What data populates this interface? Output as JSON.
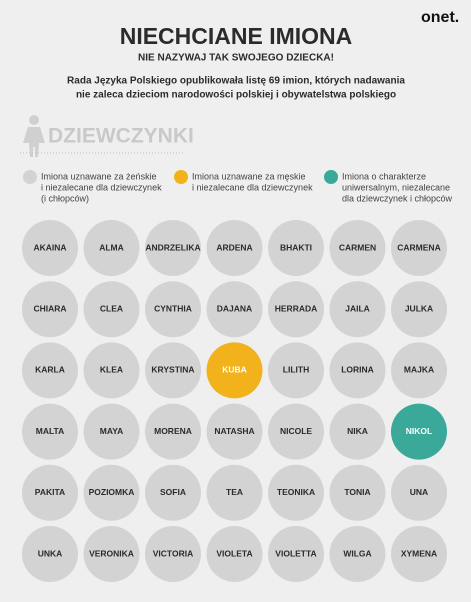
{
  "logo": "onet.",
  "title": "NIECHCIANE IMIONA",
  "subtitle": "NIE NAZYWAJ TAK SWOJEGO DZIECKA!",
  "description": [
    "Rada Języka Polskiego opublikowała listę 69 imion, których nadawania",
    "nie zaleca dzieciom narodowości polskiej i obywatelstwa polskiego"
  ],
  "section": "DZIEWCZYNKI",
  "legend": [
    {
      "color": "#d3d3d3",
      "lines": [
        "Imiona uznawane za żeńskie",
        "i niezalecane dla dziewczynek",
        "(i chłopców)"
      ]
    },
    {
      "color": "#f2b21b",
      "lines": [
        "Imiona uznawane za męskie",
        "i niezalecane dla dziewczynek"
      ]
    },
    {
      "color": "#3aa99a",
      "lines": [
        "Imiona o charakterze",
        "uniwersalnym, niezalecane",
        "dla dziewczynek i chłopców"
      ]
    }
  ],
  "rows": [
    [
      {
        "name": "AKAINA",
        "color": "#d3d3d3"
      },
      {
        "name": "ALMA",
        "color": "#d3d3d3"
      },
      {
        "name": "ANDRZELIKA",
        "color": "#d3d3d3"
      },
      {
        "name": "ARDENA",
        "color": "#d3d3d3"
      },
      {
        "name": "BHAKTI",
        "color": "#d3d3d3"
      },
      {
        "name": "CARMEN",
        "color": "#d3d3d3"
      },
      {
        "name": "CARMENA",
        "color": "#d3d3d3"
      }
    ],
    [
      {
        "name": "CHIARA",
        "color": "#d3d3d3"
      },
      {
        "name": "CLEA",
        "color": "#d3d3d3"
      },
      {
        "name": "CYNTHIA",
        "color": "#d3d3d3"
      },
      {
        "name": "DAJANA",
        "color": "#d3d3d3"
      },
      {
        "name": "HERRADA",
        "color": "#d3d3d3"
      },
      {
        "name": "JAILA",
        "color": "#d3d3d3"
      },
      {
        "name": "JULKA",
        "color": "#d3d3d3"
      }
    ],
    [
      {
        "name": "KARLA",
        "color": "#d3d3d3"
      },
      {
        "name": "KLEA",
        "color": "#d3d3d3"
      },
      {
        "name": "KRYSTINA",
        "color": "#d3d3d3"
      },
      {
        "name": "KUBA",
        "color": "#f2b21b"
      },
      {
        "name": "LILITH",
        "color": "#d3d3d3"
      },
      {
        "name": "LORINA",
        "color": "#d3d3d3"
      },
      {
        "name": "MAJKA",
        "color": "#d3d3d3"
      }
    ],
    [
      {
        "name": "MALTA",
        "color": "#d3d3d3"
      },
      {
        "name": "MAYA",
        "color": "#d3d3d3"
      },
      {
        "name": "MORENA",
        "color": "#d3d3d3"
      },
      {
        "name": "NATASHA",
        "color": "#d3d3d3"
      },
      {
        "name": "NICOLE",
        "color": "#d3d3d3"
      },
      {
        "name": "NIKA",
        "color": "#d3d3d3"
      },
      {
        "name": "NIKOL",
        "color": "#3aa99a"
      }
    ],
    [
      {
        "name": "PAKITA",
        "color": "#d3d3d3"
      },
      {
        "name": "POZIOMKA",
        "color": "#d3d3d3"
      },
      {
        "name": "SOFIA",
        "color": "#d3d3d3"
      },
      {
        "name": "TEA",
        "color": "#d3d3d3"
      },
      {
        "name": "TEONIKA",
        "color": "#d3d3d3"
      },
      {
        "name": "TONIA",
        "color": "#d3d3d3"
      },
      {
        "name": "UNA",
        "color": "#d3d3d3"
      }
    ],
    [
      {
        "name": "UNKA",
        "color": "#d3d3d3"
      },
      {
        "name": "VERONIKA",
        "color": "#d3d3d3"
      },
      {
        "name": "VICTORIA",
        "color": "#d3d3d3"
      },
      {
        "name": "VIOLETA",
        "color": "#d3d3d3"
      },
      {
        "name": "VIOLETTA",
        "color": "#d3d3d3"
      },
      {
        "name": "WILGA",
        "color": "#d3d3d3"
      },
      {
        "name": "XYMENA",
        "color": "#d3d3d3"
      }
    ]
  ]
}
